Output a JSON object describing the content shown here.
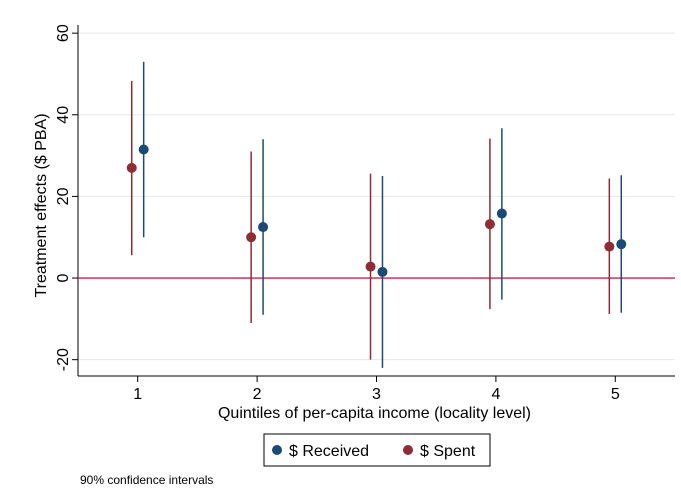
{
  "chart_data": {
    "type": "scatter",
    "subtype": "point-estimate with confidence intervals",
    "xlabel": "Quintiles of per-capita income (locality level)",
    "ylabel": "Treatment effects ($ PBA)",
    "categories": [
      "1",
      "2",
      "3",
      "4",
      "5"
    ],
    "x_ticks": [
      1,
      2,
      3,
      4,
      5
    ],
    "xlim": [
      0.5,
      5.5
    ],
    "ylim": [
      -24,
      62
    ],
    "y_ticks": [
      -20,
      0,
      20,
      40,
      60
    ],
    "reference_line": {
      "y": 0,
      "color": "#c8224f"
    },
    "grid": "horizontal",
    "legend_position": "bottom",
    "series": [
      {
        "name": "$ Received",
        "color": "#1b4b73",
        "values": [
          31.5,
          12.5,
          1.5,
          15.8,
          8.3
        ],
        "ci_lower": [
          10,
          -9,
          -22,
          -5.3,
          -8.5
        ],
        "ci_upper": [
          53,
          34,
          25,
          36.7,
          25.2
        ]
      },
      {
        "name": "$ Spent",
        "color": "#8e2d35",
        "values": [
          27,
          10,
          2.8,
          13.2,
          7.7
        ],
        "ci_lower": [
          5.6,
          -11,
          -20,
          -7.6,
          -8.8
        ],
        "ci_upper": [
          48.3,
          31,
          25.6,
          34.2,
          24.4
        ]
      }
    ]
  },
  "note": "90% confidence intervals"
}
